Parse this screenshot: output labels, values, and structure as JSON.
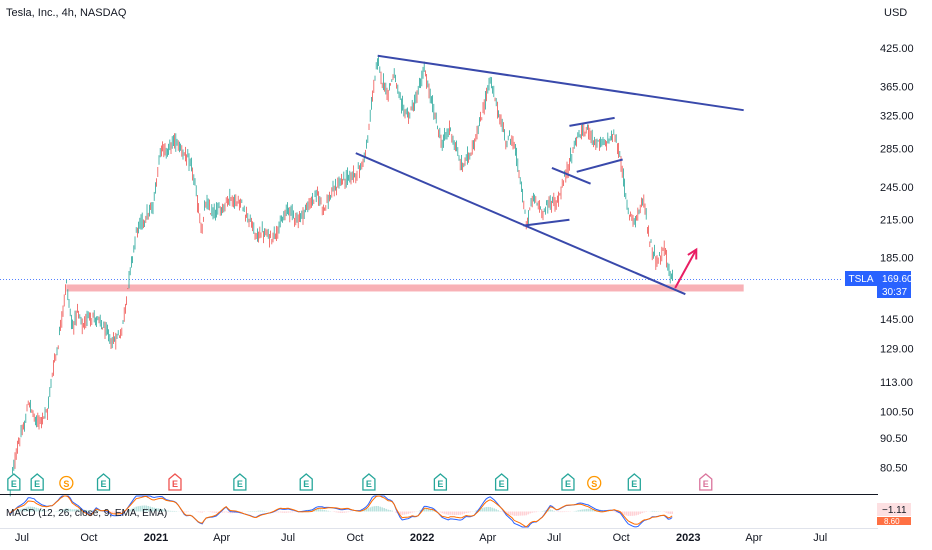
{
  "header": {
    "title": "Tesla, Inc., 4h, NASDAQ",
    "currency": "USD"
  },
  "price_tag": {
    "symbol": "TSLA",
    "price": "169.60",
    "countdown": "30:37"
  },
  "macd": {
    "label": "MACD (12, 26, close, 9, EMA, EMA)",
    "value1": "−1.11",
    "value2": "8.60"
  },
  "events": [
    {
      "type": "E",
      "x": "2020-06-20",
      "color": "#26a69a"
    },
    {
      "type": "E",
      "x": "2020-07-22",
      "color": "#26a69a"
    },
    {
      "type": "S",
      "x": "2020-08-31",
      "color": "#ff9800"
    },
    {
      "type": "E",
      "x": "2020-10-21",
      "color": "#26a69a"
    },
    {
      "type": "E",
      "x": "2021-01-27",
      "color": "#ef5350"
    },
    {
      "type": "E",
      "x": "2021-04-26",
      "color": "#26a69a"
    },
    {
      "type": "E",
      "x": "2021-07-26",
      "color": "#26a69a"
    },
    {
      "type": "E",
      "x": "2021-10-20",
      "color": "#26a69a"
    },
    {
      "type": "E",
      "x": "2022-01-26",
      "color": "#26a69a"
    },
    {
      "type": "E",
      "x": "2022-04-20",
      "color": "#26a69a"
    },
    {
      "type": "E",
      "x": "2022-07-20",
      "color": "#26a69a"
    },
    {
      "type": "S",
      "x": "2022-08-25",
      "color": "#ff9800"
    },
    {
      "type": "E",
      "x": "2022-10-19",
      "color": "#26a69a"
    },
    {
      "type": "E",
      "x": "2023-01-25",
      "color": "#c2185b",
      "future": true
    }
  ],
  "chart_data": {
    "type": "line",
    "title": "Tesla, Inc., 4h, NASDAQ",
    "y_unit": "USD",
    "y_scale": "log",
    "ylim": [
      73,
      460
    ],
    "xlim": [
      "2020-06-01",
      "2023-09-10"
    ],
    "x_ticks": [
      {
        "label": "Jul",
        "x": "2020-07-01"
      },
      {
        "label": "Oct",
        "x": "2020-10-01"
      },
      {
        "label": "2021",
        "x": "2021-01-01"
      },
      {
        "label": "Apr",
        "x": "2021-04-01"
      },
      {
        "label": "Jul",
        "x": "2021-07-01"
      },
      {
        "label": "Oct",
        "x": "2021-10-01"
      },
      {
        "label": "2022",
        "x": "2022-01-01"
      },
      {
        "label": "Apr",
        "x": "2022-04-01"
      },
      {
        "label": "Jul",
        "x": "2022-07-01"
      },
      {
        "label": "Oct",
        "x": "2022-10-01"
      },
      {
        "label": "2023",
        "x": "2023-01-01"
      },
      {
        "label": "Apr",
        "x": "2023-04-01"
      },
      {
        "label": "Jul",
        "x": "2023-07-01"
      }
    ],
    "y_ticks": [
      "425.00",
      "365.00",
      "325.00",
      "285.00",
      "245.00",
      "215.00",
      "185.00",
      "145.00",
      "129.00",
      "113.00",
      "100.50",
      "90.50",
      "80.50"
    ],
    "series": [
      {
        "color": "#26a69a",
        "points": [
          [
            "2020-06-15",
            74
          ],
          [
            "2020-06-25",
            88
          ],
          [
            "2020-07-05",
            95
          ],
          [
            "2020-07-10",
            105
          ],
          [
            "2020-07-20",
            96
          ],
          [
            "2020-07-28",
            98
          ],
          [
            "2020-08-05",
            100
          ],
          [
            "2020-08-12",
            118
          ],
          [
            "2020-08-20",
            132
          ],
          [
            "2020-08-31",
            168
          ],
          [
            "2020-09-08",
            140
          ],
          [
            "2020-09-15",
            149
          ],
          [
            "2020-09-23",
            140
          ],
          [
            "2020-10-01",
            148
          ],
          [
            "2020-10-10",
            145
          ],
          [
            "2020-10-20",
            141
          ],
          [
            "2020-11-01",
            132
          ],
          [
            "2020-11-15",
            138
          ],
          [
            "2020-11-25",
            170
          ],
          [
            "2020-12-05",
            205
          ],
          [
            "2020-12-15",
            215
          ],
          [
            "2020-12-28",
            226
          ],
          [
            "2021-01-08",
            290
          ],
          [
            "2021-01-15",
            280
          ],
          [
            "2021-01-26",
            295
          ],
          [
            "2021-02-05",
            285
          ],
          [
            "2021-02-20",
            262
          ],
          [
            "2021-03-05",
            205
          ],
          [
            "2021-03-10",
            230
          ],
          [
            "2021-03-20",
            220
          ],
          [
            "2021-04-01",
            225
          ],
          [
            "2021-04-12",
            235
          ],
          [
            "2021-04-28",
            228
          ],
          [
            "2021-05-10",
            215
          ],
          [
            "2021-05-18",
            200
          ],
          [
            "2021-05-25",
            205
          ],
          [
            "2021-06-08",
            200
          ],
          [
            "2021-06-22",
            212
          ],
          [
            "2021-07-01",
            225
          ],
          [
            "2021-07-15",
            215
          ],
          [
            "2021-07-30",
            228
          ],
          [
            "2021-08-10",
            238
          ],
          [
            "2021-08-19",
            225
          ],
          [
            "2021-08-30",
            238
          ],
          [
            "2021-09-10",
            250
          ],
          [
            "2021-09-25",
            255
          ],
          [
            "2021-10-08",
            262
          ],
          [
            "2021-10-18",
            290
          ],
          [
            "2021-10-25",
            355
          ],
          [
            "2021-11-01",
            402
          ],
          [
            "2021-11-08",
            372
          ],
          [
            "2021-11-15",
            355
          ],
          [
            "2021-11-23",
            385
          ],
          [
            "2021-12-03",
            338
          ],
          [
            "2021-12-14",
            325
          ],
          [
            "2021-12-23",
            345
          ],
          [
            "2022-01-04",
            390
          ],
          [
            "2022-01-12",
            350
          ],
          [
            "2022-01-20",
            320
          ],
          [
            "2022-01-28",
            290
          ],
          [
            "2022-02-08",
            310
          ],
          [
            "2022-02-24",
            265
          ],
          [
            "2022-03-08",
            280
          ],
          [
            "2022-03-20",
            310
          ],
          [
            "2022-04-04",
            375
          ],
          [
            "2022-04-14",
            335
          ],
          [
            "2022-04-26",
            295
          ],
          [
            "2022-05-05",
            298
          ],
          [
            "2022-05-15",
            255
          ],
          [
            "2022-05-24",
            210
          ],
          [
            "2022-06-02",
            235
          ],
          [
            "2022-06-15",
            222
          ],
          [
            "2022-06-28",
            232
          ],
          [
            "2022-07-05",
            229
          ],
          [
            "2022-07-20",
            265
          ],
          [
            "2022-08-02",
            300
          ],
          [
            "2022-08-17",
            308
          ],
          [
            "2022-08-28",
            290
          ],
          [
            "2022-09-08",
            290
          ],
          [
            "2022-09-21",
            302
          ],
          [
            "2022-09-30",
            275
          ],
          [
            "2022-10-10",
            222
          ],
          [
            "2022-10-20",
            215
          ],
          [
            "2022-11-01",
            232
          ],
          [
            "2022-11-10",
            195
          ],
          [
            "2022-11-20",
            182
          ],
          [
            "2022-11-30",
            192
          ],
          [
            "2022-12-07",
            172
          ],
          [
            "2022-12-12",
            169.6
          ]
        ]
      }
    ],
    "annotations": [
      {
        "kind": "trendline",
        "from": [
          "2021-11-01",
          412
        ],
        "to": [
          "2023-03-18",
          332
        ]
      },
      {
        "kind": "trendline",
        "from": [
          "2021-10-02",
          280
        ],
        "to": [
          "2022-12-28",
          160
        ]
      },
      {
        "kind": "trendline",
        "from": [
          "2022-06-28",
          264
        ],
        "to": [
          "2022-08-20",
          248
        ]
      },
      {
        "kind": "trendline",
        "from": [
          "2022-05-20",
          210
        ],
        "to": [
          "2022-07-22",
          215
        ]
      },
      {
        "kind": "trendline",
        "from": [
          "2022-07-22",
          312
        ],
        "to": [
          "2022-09-22",
          322
        ]
      },
      {
        "kind": "trendline",
        "from": [
          "2022-08-01",
          260
        ],
        "to": [
          "2022-10-03",
          273
        ]
      },
      {
        "kind": "zone",
        "y": 164,
        "from": "2020-08-31",
        "to": "2023-03-18",
        "color": "#f7a8ae"
      },
      {
        "kind": "arrow",
        "from": [
          "2022-12-14",
          164
        ],
        "to": [
          "2023-01-12",
          191
        ],
        "color": "#e91e63"
      },
      {
        "kind": "price_line",
        "y": 169.6
      }
    ]
  }
}
